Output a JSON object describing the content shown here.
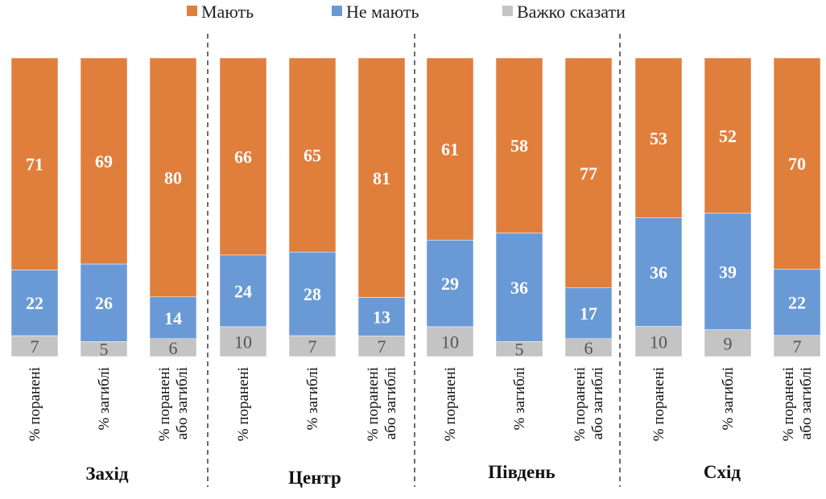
{
  "chart_data": {
    "type": "bar",
    "stacked": true,
    "percent_stacked": true,
    "legend": {
      "placement": "top",
      "entries": [
        {
          "name": "Мають",
          "color": "#E07E3C"
        },
        {
          "name": "Не мають",
          "color": "#6A9AD6"
        },
        {
          "name": "Важко сказати",
          "color": "#C4C4C4"
        }
      ]
    },
    "groups": [
      {
        "label": "Захід",
        "bars": [
          {
            "label": [
              "% поранені"
            ],
            "values": [
              71,
              22,
              7
            ]
          },
          {
            "label": [
              "% загиблі"
            ],
            "values": [
              69,
              26,
              5
            ]
          },
          {
            "label": [
              "% поранені",
              "або загиблі"
            ],
            "values": [
              80,
              14,
              6
            ]
          }
        ]
      },
      {
        "label": "Центр",
        "bars": [
          {
            "label": [
              "% поранені"
            ],
            "values": [
              66,
              24,
              10
            ]
          },
          {
            "label": [
              "% загиблі"
            ],
            "values": [
              65,
              28,
              7
            ]
          },
          {
            "label": [
              "% поранені",
              "або загиблі"
            ],
            "values": [
              81,
              13,
              7
            ]
          }
        ]
      },
      {
        "label": "Південь",
        "bars": [
          {
            "label": [
              "% поранені"
            ],
            "values": [
              61,
              29,
              10
            ]
          },
          {
            "label": [
              "% загиблі"
            ],
            "values": [
              58,
              36,
              5
            ]
          },
          {
            "label": [
              "% поранені",
              "або загиблі"
            ],
            "values": [
              77,
              17,
              6
            ]
          }
        ]
      },
      {
        "label": "Схід",
        "bars": [
          {
            "label": [
              "% поранені"
            ],
            "values": [
              53,
              36,
              10
            ]
          },
          {
            "label": [
              "% загиблі"
            ],
            "values": [
              52,
              39,
              9
            ]
          },
          {
            "label": [
              "% поранені",
              "або загиблі"
            ],
            "values": [
              70,
              22,
              7
            ]
          }
        ]
      }
    ]
  }
}
